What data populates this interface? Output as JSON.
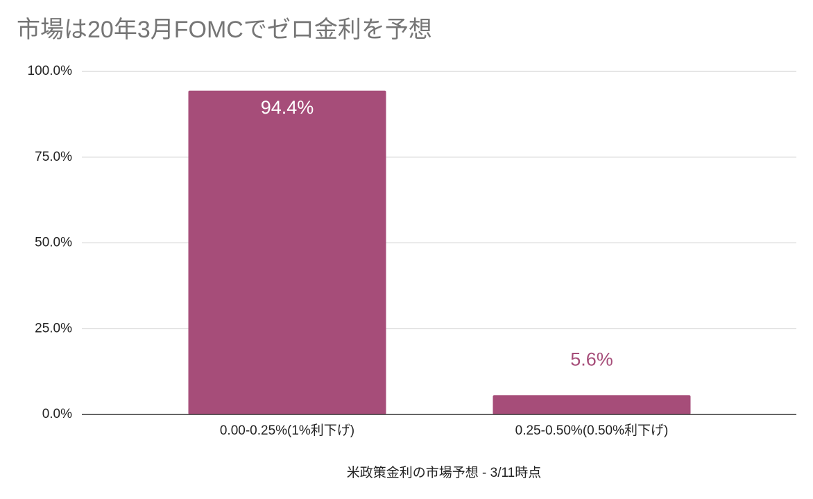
{
  "chart_data": {
    "type": "bar",
    "title": "市場は20年3月FOMCでゼロ金利を予想",
    "x_label": "米政策金利の市場予想 - 3/11時点",
    "categories": [
      "0.00-0.25%(1%利下げ)",
      "0.25-0.50%(0.50%利下げ)"
    ],
    "values": [
      94.4,
      5.6
    ],
    "value_labels": [
      "94.4%",
      "5.6%"
    ],
    "color": "#a64d79",
    "ylim": [
      0,
      100
    ],
    "yticks": [
      {
        "value": 0,
        "label": "0.0%"
      },
      {
        "value": 25,
        "label": "25.0%"
      },
      {
        "value": 50,
        "label": "50.0%"
      },
      {
        "value": 75,
        "label": "75.0%"
      },
      {
        "value": 100,
        "label": "100.0%"
      }
    ],
    "grid": true
  }
}
